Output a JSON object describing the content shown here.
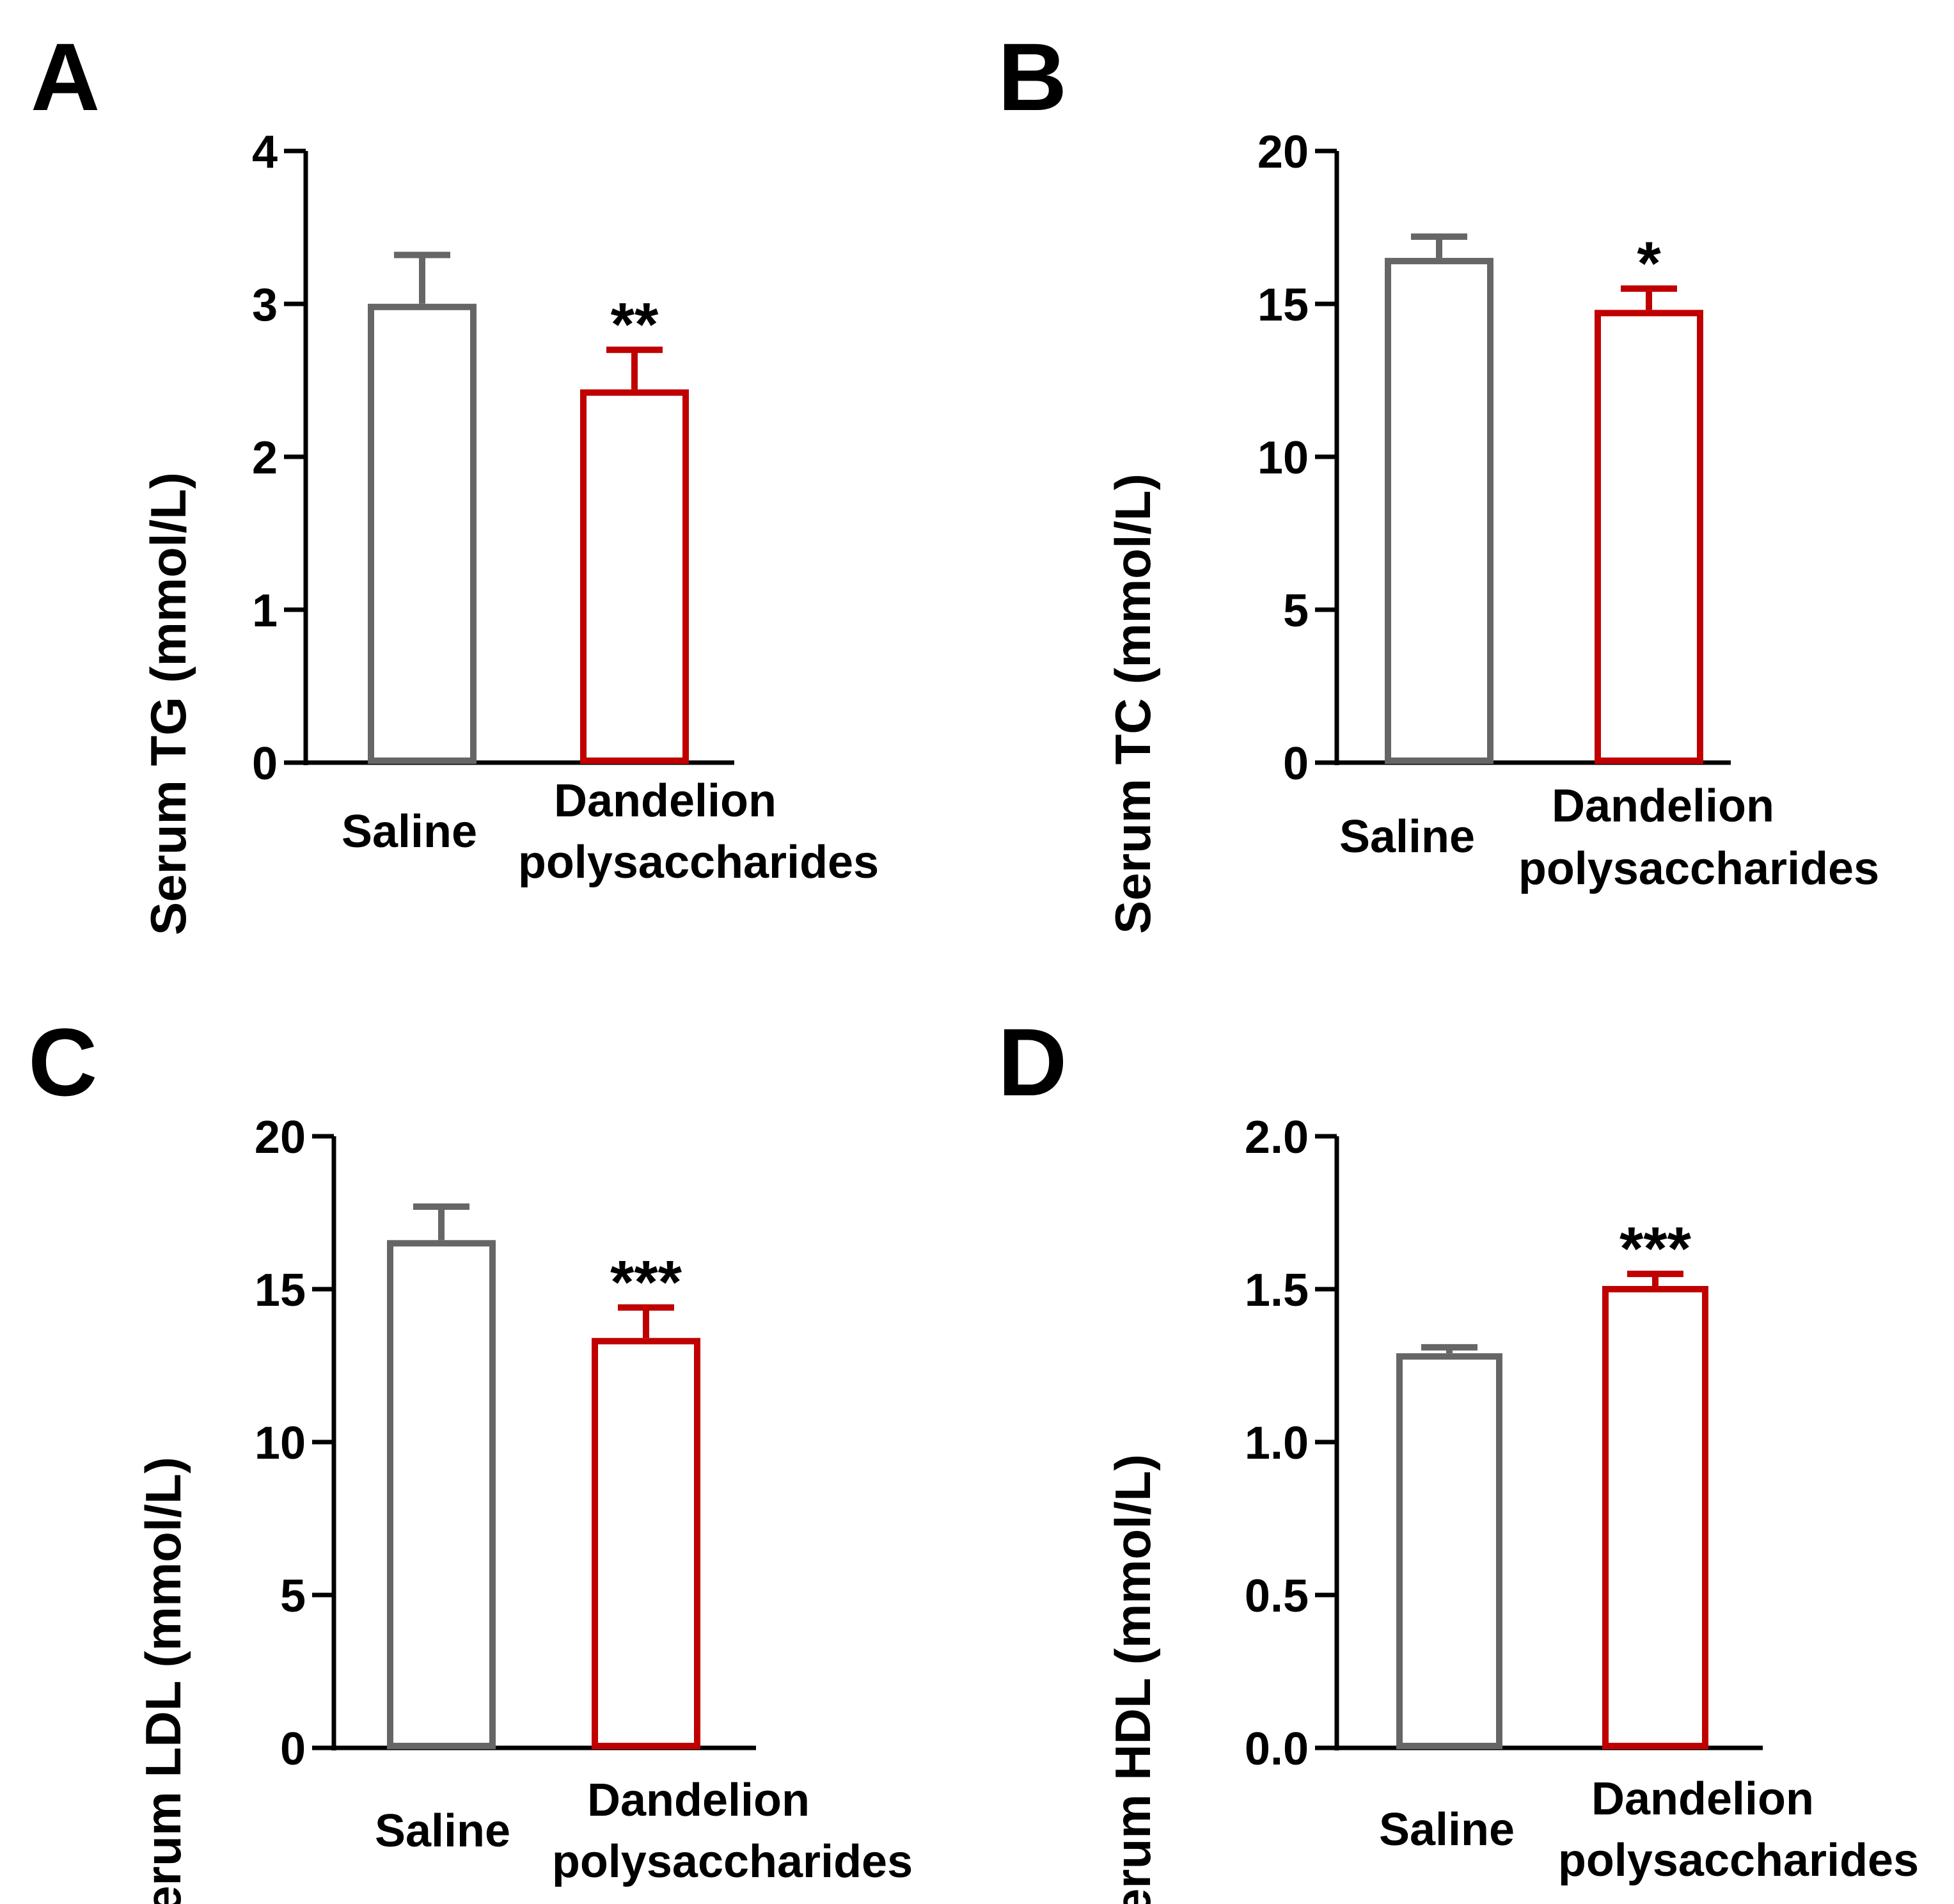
{
  "colors": {
    "saline": "#666666",
    "dandelion": "#c00000",
    "axis": "#000000"
  },
  "chart_data": [
    {
      "panel": "A",
      "type": "bar",
      "ylabel": "Serum TG (mmol/L)",
      "ylim": [
        0,
        4
      ],
      "ticks": [
        "0",
        "1",
        "2",
        "3",
        "4"
      ],
      "categories": [
        {
          "label": "Saline"
        },
        {
          "line1": "Dandelion",
          "line2": "polysaccharides"
        }
      ],
      "values": [
        2.98,
        2.42
      ],
      "errors": [
        0.34,
        0.28
      ],
      "significance": [
        "",
        "**"
      ]
    },
    {
      "panel": "B",
      "type": "bar",
      "ylabel": "Serum TC (mmol/L)",
      "ylim": [
        0,
        20
      ],
      "ticks": [
        "0",
        "5",
        "10",
        "15",
        "20"
      ],
      "categories": [
        {
          "label": "Saline"
        },
        {
          "line1": "Dandelion",
          "line2": "polysaccharides"
        }
      ],
      "values": [
        16.4,
        14.7
      ],
      "errors": [
        0.8,
        0.8
      ],
      "significance": [
        "",
        "*"
      ]
    },
    {
      "panel": "C",
      "type": "bar",
      "ylabel": "Serum LDL (mmol/L)",
      "ylim": [
        0,
        20
      ],
      "ticks": [
        "0",
        "5",
        "10",
        "15",
        "20"
      ],
      "categories": [
        {
          "label": "Saline"
        },
        {
          "line1": "Dandelion",
          "line2": "polysaccharides"
        }
      ],
      "values": [
        16.5,
        13.3
      ],
      "errors": [
        1.2,
        1.1
      ],
      "significance": [
        "",
        "***"
      ]
    },
    {
      "panel": "D",
      "type": "bar",
      "ylabel": "Serum HDL (mmol/L)",
      "ylim": [
        0,
        2
      ],
      "ticks": [
        "0.0",
        "0.5",
        "1.0",
        "1.5",
        "2.0"
      ],
      "categories": [
        {
          "label": "Saline"
        },
        {
          "line1": "Dandelion",
          "line2": "polysaccharides"
        }
      ],
      "values": [
        1.28,
        1.5
      ],
      "errors": [
        0.03,
        0.05
      ],
      "significance": [
        "",
        "***"
      ]
    }
  ]
}
